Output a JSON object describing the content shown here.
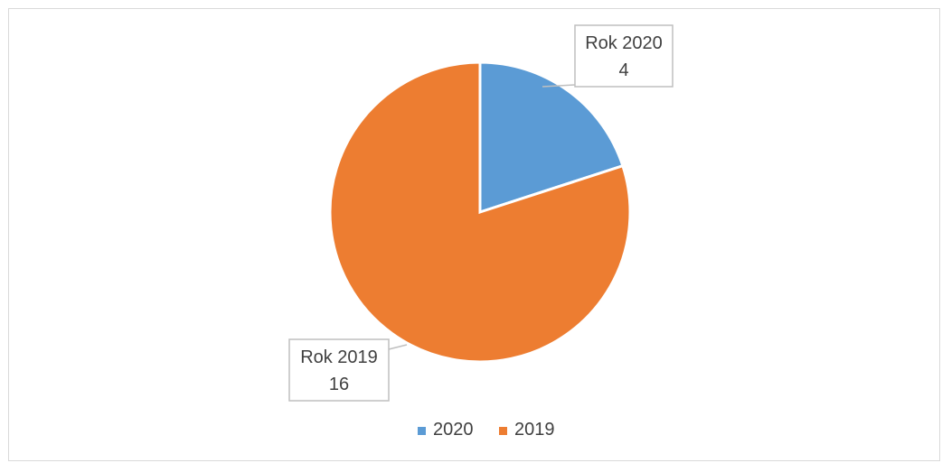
{
  "chart_data": {
    "type": "pie",
    "slices": [
      {
        "label": "2020",
        "value": 4,
        "color": "#5B9BD5",
        "data_label": "Rok 2020",
        "data_value": "4"
      },
      {
        "label": "2019",
        "value": 16,
        "color": "#ED7D31",
        "data_label": "Rok 2019",
        "data_value": "16"
      }
    ],
    "title": "",
    "legend": {
      "position": "bottom",
      "entries": [
        "2020",
        "2019"
      ]
    }
  }
}
